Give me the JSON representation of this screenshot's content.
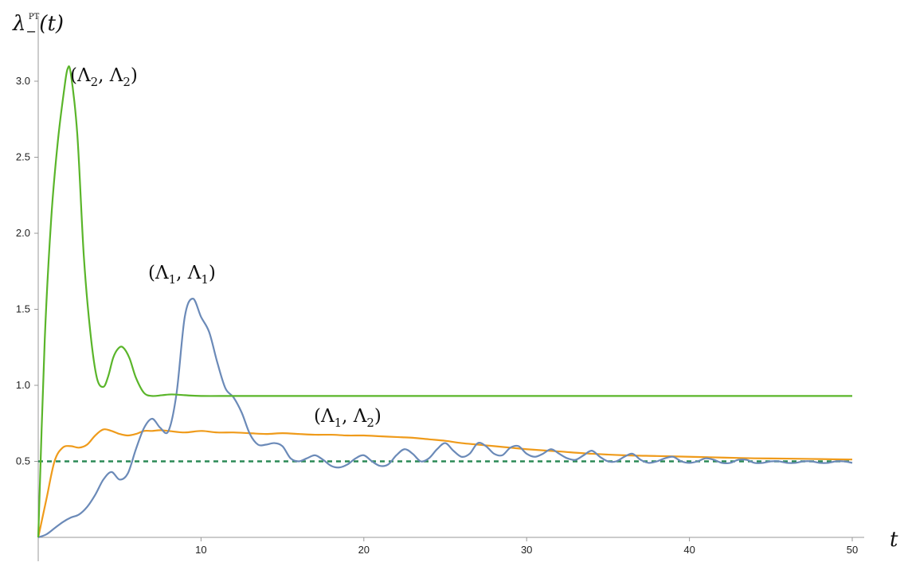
{
  "chart_data": {
    "type": "line",
    "title": "",
    "xlabel": "t",
    "ylabel": "λ₋^PT(t)",
    "ylabel_main": "λ",
    "ylabel_sub": "−",
    "ylabel_sup": "PT",
    "ylabel_arg": "(t)",
    "xlim": [
      0,
      50
    ],
    "ylim": [
      0,
      3.2
    ],
    "xticks": [
      10,
      20,
      30,
      40,
      50
    ],
    "yticks": [
      0.5,
      1.0,
      1.5,
      2.0,
      2.5,
      3.0
    ],
    "xtick_labels": [
      "10",
      "20",
      "30",
      "40",
      "50"
    ],
    "ytick_labels": [
      "0.5",
      "1.0",
      "1.5",
      "2.0",
      "2.5",
      "3.0"
    ],
    "grid": false,
    "series": [
      {
        "name": "(Λ2, Λ2)",
        "label_text": "(Λ",
        "label_sub1": "2",
        "label_mid": ", Λ",
        "label_sub2": "2",
        "label_end": ")",
        "color": "#5ab52a",
        "x": [
          0,
          0.4,
          0.8,
          1.2,
          1.6,
          1.8,
          2.0,
          2.4,
          2.8,
          3.2,
          3.6,
          4.0,
          4.3,
          4.6,
          4.9,
          5.2,
          5.6,
          6.0,
          6.5,
          7.0,
          7.6,
          8.2,
          9.0,
          10,
          12,
          15,
          20,
          30,
          40,
          50
        ],
        "y": [
          0,
          1.3,
          2.1,
          2.6,
          2.95,
          3.08,
          3.05,
          2.65,
          1.85,
          1.35,
          1.05,
          0.99,
          1.06,
          1.18,
          1.24,
          1.25,
          1.18,
          1.05,
          0.95,
          0.93,
          0.935,
          0.94,
          0.935,
          0.93,
          0.93,
          0.93,
          0.93,
          0.93,
          0.93,
          0.93
        ]
      },
      {
        "name": "(Λ1, Λ1)",
        "label_text": "(Λ",
        "label_sub1": "1",
        "label_mid": ", Λ",
        "label_sub2": "1",
        "label_end": ")",
        "color": "#6b8ab8",
        "x": [
          0,
          0.5,
          1,
          1.5,
          2,
          2.5,
          3,
          3.5,
          4,
          4.5,
          5,
          5.5,
          6,
          6.5,
          7,
          7.5,
          8,
          8.5,
          9,
          9.5,
          10,
          10.5,
          11,
          11.5,
          12,
          12.5,
          13,
          13.5,
          14,
          14.5,
          15,
          15.5,
          16,
          16.5,
          17,
          17.5,
          18,
          18.5,
          19,
          19.5,
          20,
          20.5,
          21,
          21.5,
          22,
          22.5,
          23,
          23.5,
          24,
          24.5,
          25,
          25.5,
          26,
          26.5,
          27,
          27.5,
          28,
          28.5,
          29,
          29.5,
          30,
          30.5,
          31,
          31.5,
          32,
          32.5,
          33,
          33.5,
          34,
          34.5,
          35,
          35.5,
          36,
          36.5,
          37,
          37.5,
          38,
          38.5,
          39,
          39.5,
          40,
          40.5,
          41,
          41.5,
          42,
          42.5,
          43,
          43.5,
          44,
          44.5,
          45,
          45.5,
          46,
          46.5,
          47,
          47.5,
          48,
          48.5,
          49,
          49.5,
          50
        ],
        "y": [
          0,
          0.02,
          0.06,
          0.1,
          0.13,
          0.15,
          0.2,
          0.28,
          0.38,
          0.43,
          0.38,
          0.42,
          0.58,
          0.72,
          0.78,
          0.72,
          0.7,
          0.95,
          1.45,
          1.57,
          1.45,
          1.35,
          1.15,
          0.98,
          0.92,
          0.82,
          0.68,
          0.61,
          0.61,
          0.62,
          0.6,
          0.52,
          0.5,
          0.52,
          0.54,
          0.51,
          0.47,
          0.46,
          0.48,
          0.52,
          0.54,
          0.5,
          0.47,
          0.48,
          0.54,
          0.58,
          0.55,
          0.5,
          0.52,
          0.58,
          0.62,
          0.57,
          0.53,
          0.55,
          0.62,
          0.6,
          0.55,
          0.54,
          0.59,
          0.6,
          0.55,
          0.53,
          0.55,
          0.58,
          0.55,
          0.52,
          0.51,
          0.54,
          0.57,
          0.53,
          0.5,
          0.5,
          0.53,
          0.55,
          0.51,
          0.49,
          0.5,
          0.52,
          0.53,
          0.5,
          0.49,
          0.5,
          0.52,
          0.51,
          0.49,
          0.49,
          0.51,
          0.51,
          0.49,
          0.49,
          0.5,
          0.5,
          0.49,
          0.49,
          0.5,
          0.5,
          0.49,
          0.49,
          0.5,
          0.5,
          0.49
        ]
      },
      {
        "name": "(Λ1, Λ2)",
        "label_text": "(Λ",
        "label_sub1": "1",
        "label_mid": ", Λ",
        "label_sub2": "2",
        "label_end": ")",
        "color": "#ef9b1b",
        "x": [
          0,
          0.5,
          1,
          1.5,
          2,
          2.5,
          3,
          3.5,
          4,
          4.5,
          5,
          5.5,
          6,
          6.5,
          7,
          7.5,
          8,
          9,
          10,
          11,
          12,
          13,
          14,
          15,
          16,
          17,
          18,
          19,
          20,
          21,
          22,
          23,
          24,
          25,
          26,
          27,
          28,
          29,
          30,
          32,
          34,
          36,
          38,
          40,
          42,
          44,
          46,
          48,
          50
        ],
        "y": [
          0,
          0.25,
          0.5,
          0.59,
          0.6,
          0.59,
          0.61,
          0.67,
          0.71,
          0.7,
          0.68,
          0.67,
          0.68,
          0.7,
          0.7,
          0.705,
          0.7,
          0.69,
          0.7,
          0.69,
          0.69,
          0.685,
          0.68,
          0.685,
          0.68,
          0.675,
          0.675,
          0.67,
          0.67,
          0.665,
          0.66,
          0.655,
          0.645,
          0.635,
          0.62,
          0.61,
          0.6,
          0.59,
          0.58,
          0.565,
          0.55,
          0.54,
          0.535,
          0.53,
          0.525,
          0.52,
          0.518,
          0.515,
          0.512
        ]
      }
    ],
    "reference_line": {
      "y": 0.5,
      "color": "#2b8a57",
      "style": "dashed"
    }
  }
}
